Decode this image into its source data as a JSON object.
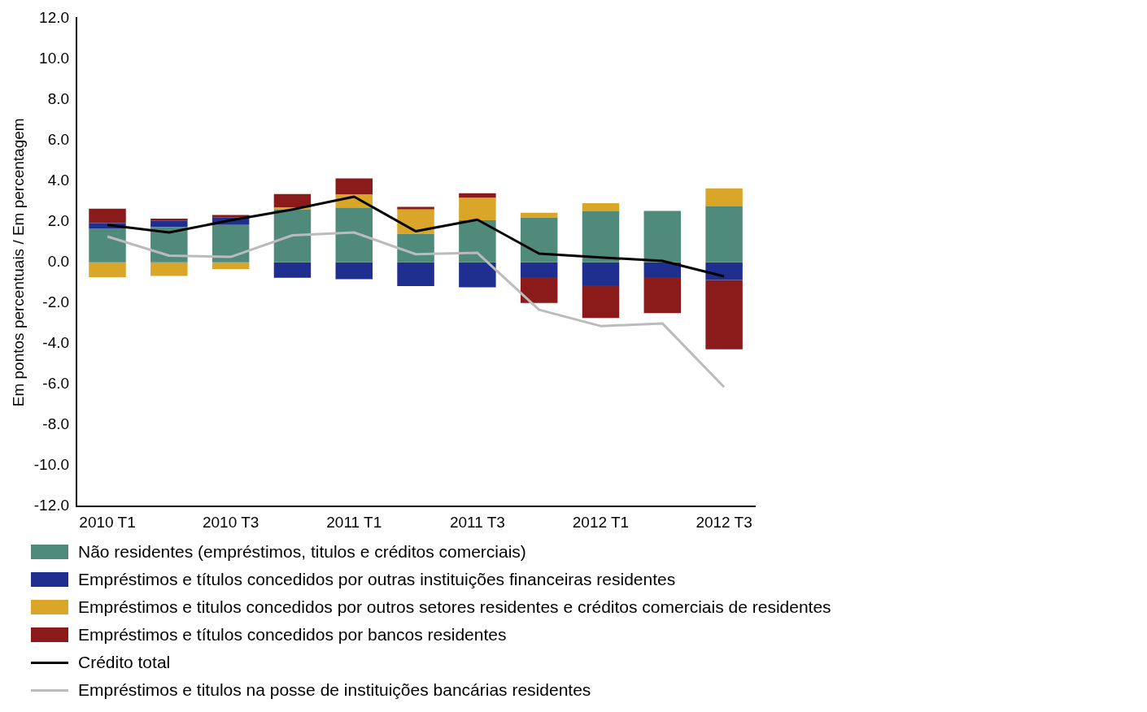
{
  "chart_data": {
    "type": "bar",
    "stacked": true,
    "ylabel": "Em pontos percentuais / Em percentagem",
    "categories": [
      "2010 T1",
      null,
      "2010 T3",
      null,
      "2011 T1",
      null,
      "2011 T3",
      null,
      "2012 T1",
      null,
      "2012 T3"
    ],
    "ylim": [
      -12,
      12
    ],
    "yticks": [
      {
        "value": -12,
        "label": "-12.0"
      },
      {
        "value": -10,
        "label": "-10.0"
      },
      {
        "value": -8,
        "label": "-8.0"
      },
      {
        "value": -6,
        "label": "-6.0"
      },
      {
        "value": -4,
        "label": "-4.0"
      },
      {
        "value": -2,
        "label": "-2.0"
      },
      {
        "value": 0,
        "label": "0.0"
      },
      {
        "value": 2,
        "label": "2.0"
      },
      {
        "value": 4,
        "label": "4.0"
      },
      {
        "value": 6,
        "label": "6.0"
      },
      {
        "value": 8,
        "label": "8.0"
      },
      {
        "value": 10,
        "label": "10.0"
      },
      {
        "value": 12,
        "label": "12.0"
      }
    ],
    "grid": false,
    "legend": "bottom",
    "series": [
      {
        "name": "Não residentes (empréstimos, titulos e créditos comerciais)",
        "color": "#4f8a7a",
        "values": [
          1.67,
          1.73,
          1.84,
          2.6,
          2.69,
          1.4,
          2.07,
          2.2,
          2.51,
          2.53,
          2.77
        ]
      },
      {
        "name": "Empréstimos e títulos concedidos por outras instituições financeiras residentes",
        "color": "#1f2f8f",
        "values": [
          0.26,
          0.33,
          0.36,
          -0.76,
          -0.83,
          -1.17,
          -1.23,
          -0.73,
          -1.13,
          -0.73,
          -0.87
        ]
      },
      {
        "name": "Empréstimos e titulos concedidos por outros setores residentes e créditos comerciais de residentes",
        "color": "#d9a62a",
        "values": [
          -0.73,
          -0.67,
          -0.33,
          0.09,
          0.64,
          1.2,
          1.1,
          0.24,
          0.4,
          null,
          0.87
        ]
      },
      {
        "name": "Empréstimos e títulos concedidos por bancos residentes",
        "color": "#8b1a1a",
        "values": [
          0.71,
          0.09,
          0.13,
          0.67,
          0.8,
          0.13,
          0.23,
          -1.27,
          -1.6,
          -1.76,
          -3.4
        ]
      },
      {
        "name": "Crédito total",
        "type": "line",
        "color": "#000000",
        "values": [
          1.84,
          1.47,
          2.07,
          2.6,
          3.23,
          1.53,
          2.1,
          0.43,
          0.24,
          0.07,
          -0.69
        ]
      },
      {
        "name": "Empréstimos e titulos na posse de instituições bancárias residentes",
        "type": "line",
        "color": "#bbbbbb",
        "values": [
          1.27,
          0.33,
          0.27,
          1.33,
          1.47,
          0.4,
          0.47,
          -2.33,
          -3.13,
          -3.0,
          -6.13
        ]
      }
    ]
  }
}
